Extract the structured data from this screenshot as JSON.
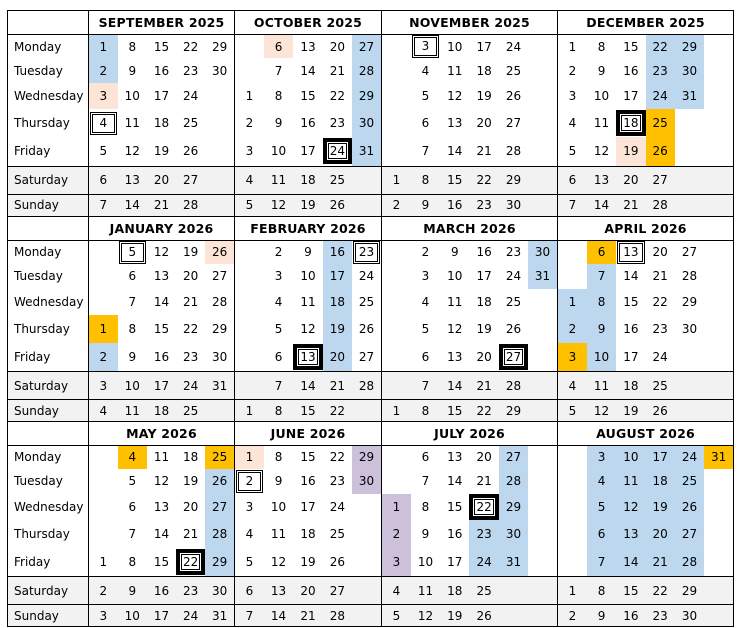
{
  "weekdays": [
    "Monday",
    "Tuesday",
    "Wednesday",
    "Thursday",
    "Friday",
    "Saturday",
    "Sunday"
  ],
  "colors": {
    "blue": "#bdd7ee",
    "peach": "#fce4d6",
    "orange": "#ffc000",
    "violet": "#ccc0da",
    "weekend": "#f2f2f2"
  },
  "bands": [
    {
      "months": [
        {
          "title": "SEPTEMBER 2025",
          "rows": [
            [
              1,
              8,
              15,
              22,
              29
            ],
            [
              2,
              9,
              16,
              23,
              30
            ],
            [
              3,
              10,
              17,
              24,
              null
            ],
            [
              4,
              11,
              18,
              25,
              null
            ],
            [
              5,
              12,
              19,
              26,
              null
            ],
            [
              6,
              13,
              20,
              27,
              null
            ],
            [
              7,
              14,
              21,
              28,
              null
            ]
          ],
          "highlights": {
            "blue": [
              1,
              2
            ],
            "peach": [
              3
            ],
            "boxed": [
              4
            ]
          }
        },
        {
          "title": "OCTOBER 2025",
          "rows": [
            [
              null,
              6,
              13,
              20,
              27
            ],
            [
              null,
              7,
              14,
              21,
              28
            ],
            [
              1,
              8,
              15,
              22,
              29
            ],
            [
              2,
              9,
              16,
              23,
              30
            ],
            [
              3,
              10,
              17,
              24,
              31
            ],
            [
              4,
              11,
              18,
              25,
              null
            ],
            [
              5,
              12,
              19,
              26,
              null
            ]
          ],
          "highlights": {
            "peach": [
              6
            ],
            "blue": [
              27,
              28,
              29,
              30,
              31
            ],
            "boxed_bold": [
              24
            ]
          }
        },
        {
          "title": "NOVEMBER 2025",
          "rows": [
            [
              null,
              3,
              10,
              17,
              24,
              null
            ],
            [
              null,
              4,
              11,
              18,
              25,
              null
            ],
            [
              null,
              5,
              12,
              19,
              26,
              null
            ],
            [
              null,
              6,
              13,
              20,
              27,
              null
            ],
            [
              null,
              7,
              14,
              21,
              28,
              null
            ],
            [
              1,
              8,
              15,
              22,
              29,
              null
            ],
            [
              2,
              9,
              16,
              23,
              30,
              null
            ]
          ],
          "highlights": {
            "boxed": [
              3
            ]
          }
        },
        {
          "title": "DECEMBER 2025",
          "rows": [
            [
              1,
              8,
              15,
              22,
              29,
              null
            ],
            [
              2,
              9,
              16,
              23,
              30,
              null
            ],
            [
              3,
              10,
              17,
              24,
              31,
              null
            ],
            [
              4,
              11,
              18,
              25,
              null,
              null
            ],
            [
              5,
              12,
              19,
              26,
              null,
              null
            ],
            [
              6,
              13,
              20,
              27,
              null,
              null
            ],
            [
              7,
              14,
              21,
              28,
              null,
              null
            ]
          ],
          "highlights": {
            "blue": [
              22,
              23,
              24,
              29,
              30,
              31
            ],
            "orange": [
              25,
              26
            ],
            "peach": [
              19
            ],
            "boxed_bold": [
              18
            ]
          }
        }
      ]
    },
    {
      "months": [
        {
          "title": "JANUARY 2026",
          "rows": [
            [
              null,
              5,
              12,
              19,
              26
            ],
            [
              null,
              6,
              13,
              20,
              27
            ],
            [
              null,
              7,
              14,
              21,
              28
            ],
            [
              1,
              8,
              15,
              22,
              29
            ],
            [
              2,
              9,
              16,
              23,
              30
            ],
            [
              3,
              10,
              17,
              24,
              31
            ],
            [
              4,
              11,
              18,
              25,
              null
            ]
          ],
          "highlights": {
            "boxed": [
              5
            ],
            "peach": [
              26
            ],
            "orange": [
              1
            ],
            "blue": [
              2
            ]
          }
        },
        {
          "title": "FEBRUARY 2026",
          "rows": [
            [
              null,
              2,
              9,
              16,
              23
            ],
            [
              null,
              3,
              10,
              17,
              24
            ],
            [
              null,
              4,
              11,
              18,
              25
            ],
            [
              null,
              5,
              12,
              19,
              26
            ],
            [
              null,
              6,
              13,
              20,
              27
            ],
            [
              null,
              7,
              14,
              21,
              28
            ],
            [
              1,
              8,
              15,
              22,
              null
            ]
          ],
          "highlights": {
            "blue": [
              16,
              17,
              18,
              19,
              20
            ],
            "boxed": [
              23
            ],
            "boxed_bold": [
              13
            ]
          }
        },
        {
          "title": "MARCH 2026",
          "rows": [
            [
              null,
              2,
              9,
              16,
              23,
              30
            ],
            [
              null,
              3,
              10,
              17,
              24,
              31
            ],
            [
              null,
              4,
              11,
              18,
              25,
              null
            ],
            [
              null,
              5,
              12,
              19,
              26,
              null
            ],
            [
              null,
              6,
              13,
              20,
              27,
              null
            ],
            [
              null,
              7,
              14,
              21,
              28,
              null
            ],
            [
              1,
              8,
              15,
              22,
              29,
              null
            ]
          ],
          "highlights": {
            "blue": [
              30,
              31
            ],
            "boxed_bold": [
              27
            ]
          }
        },
        {
          "title": "APRIL 2026",
          "rows": [
            [
              null,
              6,
              13,
              20,
              27,
              null
            ],
            [
              null,
              7,
              14,
              21,
              28,
              null
            ],
            [
              1,
              8,
              15,
              22,
              29,
              null
            ],
            [
              2,
              9,
              16,
              23,
              30,
              null
            ],
            [
              3,
              10,
              17,
              24,
              null,
              null
            ],
            [
              4,
              11,
              18,
              25,
              null,
              null
            ],
            [
              5,
              12,
              19,
              26,
              null,
              null
            ]
          ],
          "highlights": {
            "orange": [
              6,
              3
            ],
            "boxed": [
              13
            ],
            "blue": [
              1,
              2,
              7,
              8,
              9,
              10
            ]
          }
        }
      ]
    },
    {
      "months": [
        {
          "title": "MAY 2026",
          "rows": [
            [
              null,
              4,
              11,
              18,
              25
            ],
            [
              null,
              5,
              12,
              19,
              26
            ],
            [
              null,
              6,
              13,
              20,
              27
            ],
            [
              null,
              7,
              14,
              21,
              28
            ],
            [
              1,
              8,
              15,
              22,
              29
            ],
            [
              2,
              9,
              16,
              23,
              30
            ],
            [
              3,
              10,
              17,
              24,
              31
            ]
          ],
          "highlights": {
            "orange": [
              4,
              25
            ],
            "blue": [
              26,
              27,
              28,
              29
            ],
            "boxed_bold": [
              22
            ]
          }
        },
        {
          "title": "JUNE 2026",
          "rows": [
            [
              1,
              8,
              15,
              22,
              29
            ],
            [
              2,
              9,
              16,
              23,
              30
            ],
            [
              3,
              10,
              17,
              24,
              null
            ],
            [
              4,
              11,
              18,
              25,
              null
            ],
            [
              5,
              12,
              19,
              26,
              null
            ],
            [
              6,
              13,
              20,
              27,
              null
            ],
            [
              7,
              14,
              21,
              28,
              null
            ]
          ],
          "highlights": {
            "peach": [
              1
            ],
            "boxed": [
              2
            ],
            "violet": [
              29,
              30
            ]
          }
        },
        {
          "title": "JULY 2026",
          "rows": [
            [
              null,
              6,
              13,
              20,
              27,
              null
            ],
            [
              null,
              7,
              14,
              21,
              28,
              null
            ],
            [
              1,
              8,
              15,
              22,
              29,
              null
            ],
            [
              2,
              9,
              16,
              23,
              30,
              null
            ],
            [
              3,
              10,
              17,
              24,
              31,
              null
            ],
            [
              4,
              11,
              18,
              25,
              null,
              null
            ],
            [
              5,
              12,
              19,
              26,
              null,
              null
            ]
          ],
          "highlights": {
            "violet": [
              1,
              2,
              3
            ],
            "boxed_bold": [
              22
            ],
            "blue": [
              23,
              24,
              27,
              28,
              29,
              30,
              31
            ]
          }
        },
        {
          "title": "AUGUST 2026",
          "rows": [
            [
              null,
              3,
              10,
              17,
              24,
              31
            ],
            [
              null,
              4,
              11,
              18,
              25,
              null
            ],
            [
              null,
              5,
              12,
              19,
              26,
              null
            ],
            [
              null,
              6,
              13,
              20,
              27,
              null
            ],
            [
              null,
              7,
              14,
              21,
              28,
              null
            ],
            [
              1,
              8,
              15,
              22,
              29,
              null
            ],
            [
              2,
              9,
              16,
              23,
              30,
              null
            ]
          ],
          "highlights": {
            "blue": [
              3,
              4,
              5,
              6,
              7,
              10,
              11,
              12,
              13,
              14,
              17,
              18,
              19,
              20,
              21,
              24,
              25,
              26,
              27,
              28
            ],
            "orange": [
              31
            ]
          }
        }
      ]
    }
  ]
}
